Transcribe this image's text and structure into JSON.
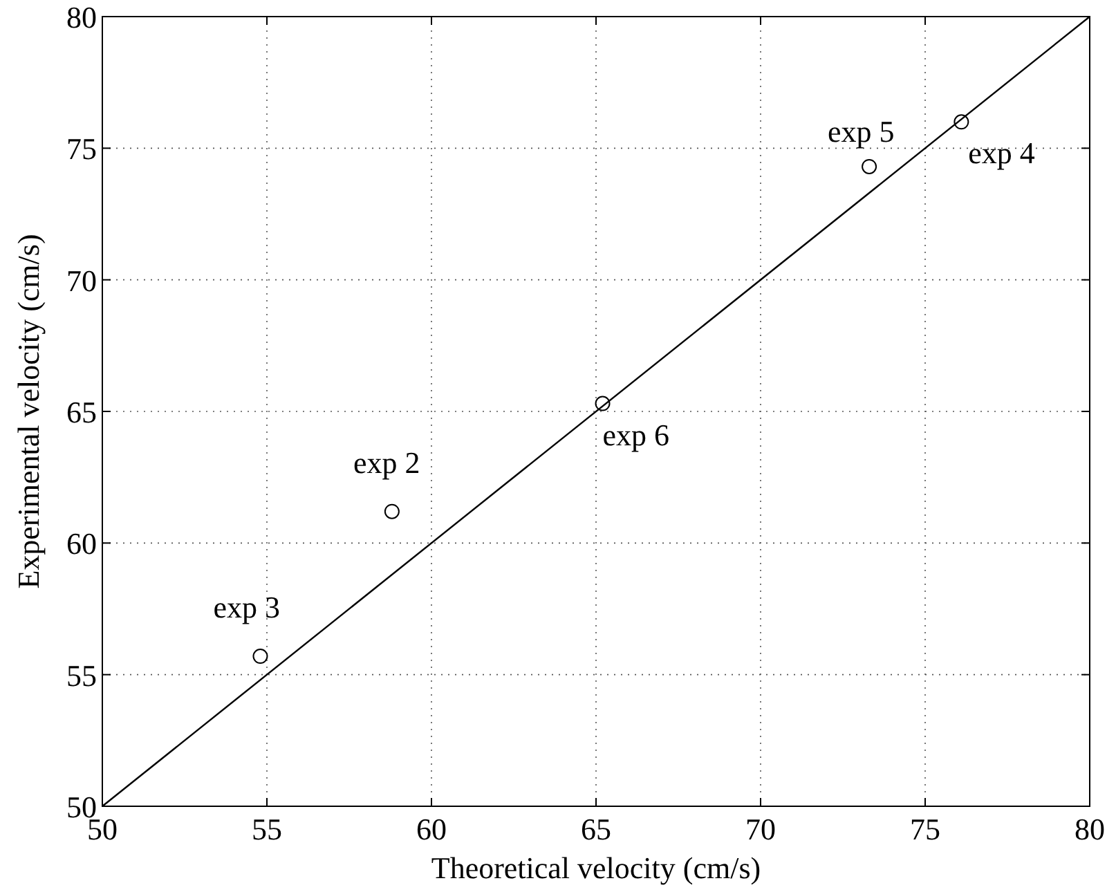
{
  "chart_data": {
    "type": "scatter",
    "xlabel": "Theoretical velocity (cm/s)",
    "ylabel": "Experimental velocity (cm/s)",
    "xlim": [
      50,
      80
    ],
    "ylim": [
      50,
      80
    ],
    "xticks": [
      50,
      55,
      60,
      65,
      70,
      75,
      80
    ],
    "yticks": [
      50,
      55,
      60,
      65,
      70,
      75,
      80
    ],
    "grid": true,
    "series": [
      {
        "color": "#000000",
        "marker": "circle",
        "x": [
          54.8,
          58.8,
          65.2,
          73.3,
          76.1
        ],
        "values": [
          55.7,
          61.2,
          65.3,
          74.3,
          76.0
        ]
      },
      {
        "type": "line",
        "color": "#000000",
        "marker": "none",
        "line_style": "solid",
        "x": [
          50,
          80
        ],
        "values": [
          50,
          80
        ]
      }
    ],
    "annotations": [
      {
        "text": "exp 3",
        "x": 54.8,
        "y": 55.7
      },
      {
        "text": "exp 2",
        "x": 58.8,
        "y": 61.2
      },
      {
        "text": "exp 6",
        "x": 65.2,
        "y": 65.3
      },
      {
        "text": "exp 5",
        "x": 73.3,
        "y": 74.3
      },
      {
        "text": "exp 4",
        "x": 76.1,
        "y": 76.0
      }
    ]
  }
}
